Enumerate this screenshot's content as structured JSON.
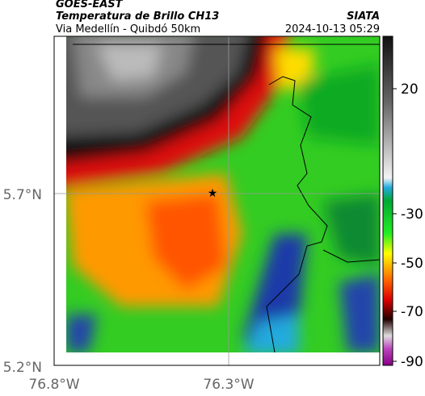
{
  "header": {
    "source": "GOES-EAST",
    "title": "Temperatura de Brillo CH13",
    "subtitle": "Via Medellín - Quibdó 50km",
    "agency": "SIATA",
    "datetime": "2024-10-13 05:29"
  },
  "map": {
    "lat_labels": [
      "5.7°N",
      "5.2°N"
    ],
    "lon_labels": [
      "76.8°W",
      "76.3°W"
    ]
  },
  "colorbar": {
    "ticks": [
      "20",
      "-30",
      "-50",
      "-70",
      "-90"
    ]
  }
}
